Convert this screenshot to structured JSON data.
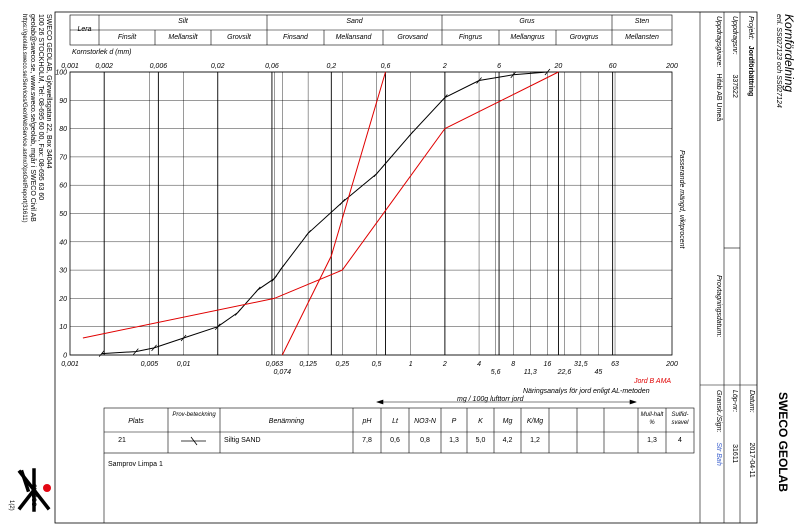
{
  "header": {
    "title": "Kornfördelning",
    "subtitle": "enl. SS027123 och SS027124",
    "projekt_label": "Projekt:",
    "projekt_value": "Jordförbättring",
    "uppdragsnr_label": "Uppdragsnr:",
    "uppdragsnr_value": "337522",
    "uppdragsgivare_label": "Uppdragsgivare:",
    "uppdragsgivare_value": "Hifab AB Umeå",
    "provtagning_label": "Provtagningsdatum:",
    "brand": "SWECO GEOLAB",
    "datum_label": "Datum:",
    "datum_value": "2017-04-11",
    "lopnr_label": "Löp-nr:",
    "lopnr_value": "31611",
    "gransk_label": "Gransk./Sign:",
    "gransk_value": "Str Bah"
  },
  "address": {
    "line1": "SWECO GEOLAB, Gjörwellsgatan 22, Box 34044",
    "line2": "100 26 STOCKHOLM, Tel: 08-695 60 00, Fax: 08-695 63 60",
    "line3": "geolab@sweco.se, www.sweco.se/geolab, mgår i SWECO Civil AB",
    "line4": "https://geolab.sweco.se/Services/GeoWebService.asmx/XpsGetReport(31611)",
    "page": "1(2)"
  },
  "fractions": {
    "lera": "Lera",
    "silt": "Silt",
    "sand": "Sand",
    "grus": "Grus",
    "sten": "Sten",
    "sub": [
      "Finsilt",
      "Mellansilt",
      "Grovsilt",
      "Finsand",
      "Mellansand",
      "Grovsand",
      "Fingrus",
      "Mellangrus",
      "Grovgrus",
      "Mellansten"
    ]
  },
  "chart_data": {
    "type": "line",
    "xlabel": "Kornstorlek d (mm)",
    "ylabel": "Passerande mängd, viktprocent",
    "x_scale": "log",
    "xlim": [
      0.001,
      200
    ],
    "ylim": [
      0,
      100
    ],
    "top_ticks": [
      "0,001",
      "0,002",
      "0,006",
      "0,02",
      "0,06",
      "0,2",
      "0,6",
      "2",
      "6",
      "20",
      "60",
      "200"
    ],
    "bottom_ticks": [
      "0,001",
      "0,005",
      "0,01",
      "0,063",
      "0,125",
      "0,25",
      "0,5",
      "1",
      "2",
      "4",
      "8",
      "16",
      "31,5",
      "63",
      "200"
    ],
    "bottom_ticks_2": [
      "0,074",
      "5,6",
      "11,3",
      "22,6",
      "45"
    ],
    "y_ticks": [
      "0",
      "10",
      "20",
      "30",
      "40",
      "50",
      "60",
      "70",
      "80",
      "90",
      "100"
    ],
    "series": [
      {
        "name": "Siltig SAND",
        "color": "#000000",
        "x": [
          0.0019,
          0.0038,
          0.0055,
          0.01,
          0.02,
          0.03,
          0.045,
          0.063,
          0.074,
          0.125,
          0.25,
          0.5,
          1,
          2,
          4,
          8,
          16
        ],
        "values": [
          0.5,
          1.2,
          2.5,
          6,
          10,
          15,
          23,
          27,
          31,
          43,
          54,
          64,
          78,
          91,
          97,
          99,
          100
        ]
      },
      {
        "name": "Jord B AMA",
        "color": "#e00000",
        "x": [
          0.0013,
          0.063,
          0.25,
          2,
          20
        ],
        "values": [
          6,
          20,
          30,
          80,
          100
        ]
      },
      {
        "color": "#e00000",
        "x": [
          0.074,
          0.2,
          0.6
        ],
        "values": [
          0,
          35,
          100
        ]
      }
    ]
  },
  "legend_red": "Jord B AMA",
  "nutrient": {
    "title": "Näringsanalys för jord enligt AL-metoden",
    "subtitle": "mg / 100g lufttorr jord",
    "headers": [
      "Plats",
      "Prov-beteckning",
      "Benämning",
      "pH",
      "Lt",
      "NO3-N",
      "P",
      "K",
      "Mg",
      "K/Mg",
      "",
      "",
      "",
      "Mull-halt %",
      "Sulfid-svavel"
    ],
    "row": [
      "21",
      "",
      "Siltig SAND",
      "7,8",
      "0,6",
      "0,8",
      "1,3",
      "5,0",
      "4,2",
      "1,2",
      "",
      "",
      "",
      "1,3",
      "4"
    ],
    "note": "Samprov Limpa 1"
  },
  "colors": {
    "line": "#000000",
    "red": "#e00000",
    "brand_red": "#e30613"
  }
}
